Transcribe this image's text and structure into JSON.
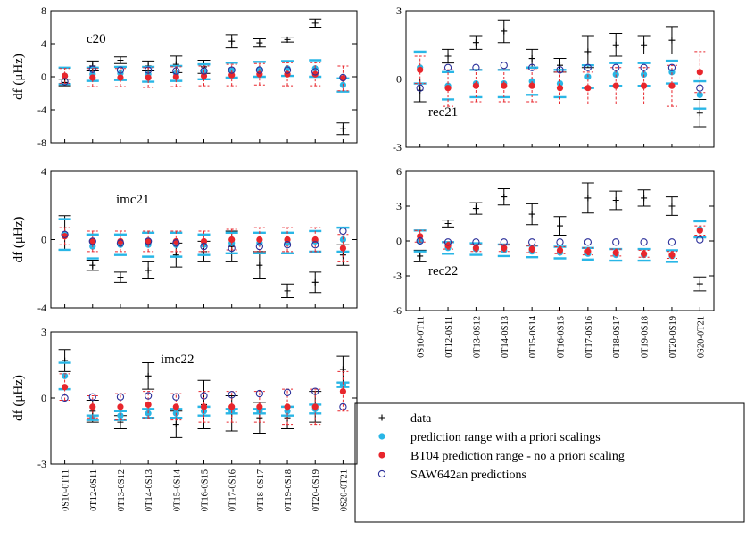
{
  "legend": [
    {
      "name": "data",
      "color": "#000000",
      "marker": "plus"
    },
    {
      "name": "prediction range with a priori scalings",
      "color": "#29b6e6",
      "marker": "dot"
    },
    {
      "name": "BT04 prediction range - no a priori scaling",
      "color": "#e8262c",
      "marker": "dot"
    },
    {
      "name": "SAW642an predictions",
      "color": "#2b2f9a",
      "marker": "circle"
    }
  ],
  "chart_data": [
    {
      "type": "errorbar",
      "label": "c20",
      "ylabel": "df (μHz)",
      "ylim": [
        -8,
        8
      ],
      "yticks": [
        -8,
        -4,
        0,
        4,
        8
      ],
      "series": [
        {
          "values": [
            -0.7,
            1.3,
            2.0,
            1.3,
            1.5,
            1.2,
            4.3,
            4.1,
            4.5,
            6.5,
            -6.3
          ],
          "errors": [
            0.4,
            0.6,
            0.4,
            0.6,
            1.0,
            0.8,
            0.8,
            0.5,
            0.3,
            0.5,
            0.7
          ]
        },
        {
          "values": [
            0.1,
            0.3,
            0.4,
            0.3,
            0.4,
            0.6,
            0.8,
            0.9,
            1.0,
            1.0,
            -1.0
          ],
          "errors": [
            1.0,
            0.8,
            0.8,
            0.9,
            0.9,
            0.9,
            0.9,
            0.9,
            0.9,
            1.0,
            0.8
          ]
        },
        {
          "values": [
            0.1,
            -0.1,
            -0.1,
            -0.1,
            0.0,
            0.1,
            0.2,
            0.3,
            0.3,
            0.3,
            -0.2
          ],
          "errors": [
            0.9,
            1.1,
            1.1,
            1.2,
            1.2,
            1.2,
            1.3,
            1.3,
            1.4,
            1.4,
            1.5
          ]
        },
        {
          "values": [
            -0.6,
            0.9,
            0.8,
            0.8,
            0.7,
            0.7,
            0.8,
            0.8,
            0.8,
            0.6,
            -0.1
          ]
        }
      ]
    },
    {
      "type": "errorbar",
      "label": "rec21",
      "ylim": [
        -3,
        3
      ],
      "yticks": [
        -3,
        0,
        3
      ],
      "series": [
        {
          "values": [
            -0.5,
            1.0,
            1.6,
            2.1,
            0.9,
            0.6,
            1.2,
            1.5,
            1.5,
            1.7,
            -1.5
          ],
          "errors": [
            0.5,
            0.3,
            0.3,
            0.5,
            0.4,
            0.3,
            0.7,
            0.5,
            0.4,
            0.6,
            0.6
          ]
        },
        {
          "values": [
            0.5,
            -0.3,
            -0.2,
            -0.2,
            -0.1,
            -0.2,
            0.1,
            0.2,
            0.2,
            0.3,
            -0.7
          ],
          "errors": [
            0.7,
            0.6,
            0.6,
            0.6,
            0.6,
            0.6,
            0.5,
            0.5,
            0.5,
            0.5,
            0.6
          ]
        },
        {
          "values": [
            0.4,
            -0.4,
            -0.3,
            -0.3,
            -0.3,
            -0.4,
            -0.4,
            -0.3,
            -0.3,
            -0.3,
            0.3
          ],
          "errors": [
            0.6,
            0.8,
            0.7,
            0.7,
            0.7,
            0.7,
            0.7,
            0.8,
            0.8,
            0.9,
            0.9
          ]
        },
        {
          "values": [
            -0.4,
            0.5,
            0.5,
            0.6,
            0.5,
            0.4,
            0.5,
            0.5,
            0.5,
            0.5,
            -0.4
          ]
        }
      ]
    },
    {
      "type": "errorbar",
      "label": "imc21",
      "ylabel": "df (μHz)",
      "ylim": [
        -4,
        4
      ],
      "yticks": [
        -4,
        0,
        4
      ],
      "series": [
        {
          "values": [
            0.4,
            -1.5,
            -2.2,
            -1.8,
            -0.9,
            -0.7,
            -0.4,
            -1.5,
            -3.0,
            -2.5,
            -0.9
          ],
          "errors": [
            1.0,
            0.3,
            0.3,
            0.5,
            0.7,
            0.6,
            0.9,
            0.8,
            0.4,
            0.6,
            0.6
          ]
        },
        {
          "values": [
            0.3,
            -0.4,
            -0.3,
            -0.3,
            -0.3,
            -0.3,
            -0.2,
            -0.2,
            -0.2,
            -0.1,
            0.0
          ],
          "errors": [
            0.9,
            0.7,
            0.6,
            0.7,
            0.7,
            0.6,
            0.6,
            0.6,
            0.6,
            0.6,
            0.7
          ]
        },
        {
          "values": [
            0.2,
            -0.1,
            -0.1,
            -0.1,
            -0.1,
            -0.1,
            0.0,
            0.0,
            0.0,
            0.0,
            -0.5
          ],
          "errors": [
            0.5,
            0.6,
            0.6,
            0.6,
            0.6,
            0.6,
            0.6,
            0.7,
            0.7,
            0.7,
            0.8
          ]
        },
        {
          "values": [
            0.3,
            -0.1,
            -0.2,
            -0.1,
            -0.2,
            -0.4,
            -0.5,
            -0.4,
            -0.3,
            -0.3,
            0.5
          ]
        }
      ]
    },
    {
      "type": "errorbar",
      "label": "rec22",
      "ylim": [
        -6,
        6
      ],
      "yticks": [
        -6,
        -3,
        0,
        3,
        6
      ],
      "categories": [
        "0S10-0T11",
        "0T12-0S11",
        "0T13-0S12",
        "0T14-0S13",
        "0T15-0S14",
        "0T16-0S15",
        "0T17-0S16",
        "0T18-0S17",
        "0T19-0S18",
        "0T20-0S19",
        "0S20-0T21"
      ],
      "series": [
        {
          "values": [
            -1.3,
            1.5,
            2.8,
            3.8,
            2.3,
            1.3,
            3.7,
            3.5,
            3.7,
            3.0,
            -3.7
          ],
          "errors": [
            0.5,
            0.3,
            0.5,
            0.7,
            0.9,
            0.8,
            1.3,
            0.8,
            0.7,
            0.8,
            0.6
          ]
        },
        {
          "values": [
            0.0,
            -0.6,
            -0.7,
            -0.8,
            -0.9,
            -1.0,
            -1.1,
            -1.2,
            -1.2,
            -1.3,
            1.0
          ],
          "errors": [
            0.9,
            0.5,
            0.5,
            0.5,
            0.5,
            0.5,
            0.5,
            0.5,
            0.5,
            0.5,
            0.7
          ]
        },
        {
          "values": [
            0.4,
            -0.4,
            -0.6,
            -0.6,
            -0.7,
            -0.8,
            -0.9,
            -1.0,
            -1.1,
            -1.2,
            0.9
          ],
          "errors": [
            0.5,
            0.3,
            0.3,
            0.3,
            0.3,
            0.3,
            0.3,
            0.3,
            0.3,
            0.3,
            0.4
          ]
        },
        {
          "values": [
            0.0,
            -0.1,
            -0.1,
            -0.1,
            -0.1,
            -0.1,
            -0.1,
            -0.1,
            -0.1,
            -0.1,
            0.1
          ]
        }
      ]
    },
    {
      "type": "errorbar",
      "label": "imc22",
      "ylabel": "df (μHz)",
      "ylim": [
        -3,
        3
      ],
      "yticks": [
        -3,
        0,
        3
      ],
      "categories": [
        "0S10-0T11",
        "0T12-0S11",
        "0T13-0S12",
        "0T14-0S13",
        "0T15-0S14",
        "0T16-0S15",
        "0T17-0S16",
        "0T18-0S17",
        "0T19-0S18",
        "0T20-0S19",
        "0S20-0T21"
      ],
      "series": [
        {
          "values": [
            1.7,
            -0.6,
            -1.1,
            1.0,
            -1.2,
            -0.3,
            -0.7,
            -0.9,
            -0.9,
            -0.4,
            1.3
          ],
          "errors": [
            0.5,
            0.5,
            0.3,
            0.6,
            0.6,
            1.1,
            0.8,
            0.7,
            0.5,
            0.7,
            0.6
          ]
        },
        {
          "values": [
            1.0,
            -0.9,
            -0.8,
            -0.7,
            -0.7,
            -0.6,
            -0.6,
            -0.6,
            -0.6,
            -0.5,
            0.6
          ],
          "errors": [
            0.6,
            0.1,
            0.2,
            0.2,
            0.2,
            0.2,
            0.1,
            0.1,
            0.2,
            0.2,
            0.1
          ]
        },
        {
          "values": [
            0.5,
            -0.4,
            -0.4,
            -0.3,
            -0.4,
            -0.4,
            -0.4,
            -0.4,
            -0.4,
            -0.4,
            0.3
          ],
          "errors": [
            0.6,
            0.5,
            0.6,
            0.6,
            0.6,
            0.7,
            0.7,
            0.7,
            0.8,
            0.8,
            0.9
          ]
        },
        {
          "values": [
            0.0,
            0.05,
            0.05,
            0.1,
            0.05,
            0.1,
            0.15,
            0.2,
            0.25,
            0.3,
            -0.4
          ]
        }
      ]
    }
  ]
}
